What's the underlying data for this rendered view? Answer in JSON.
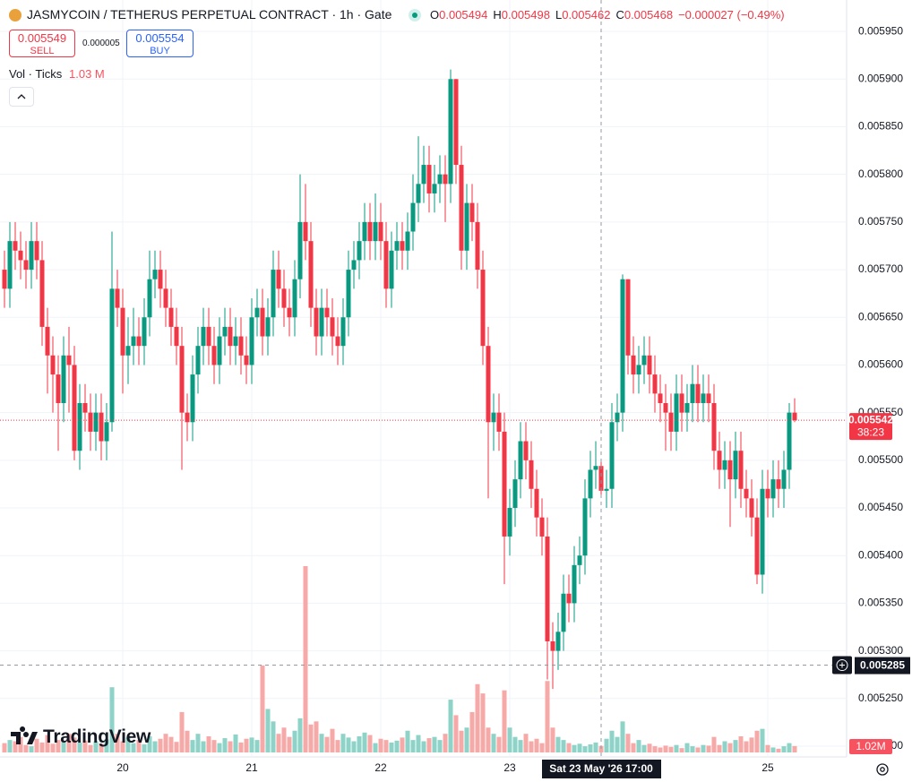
{
  "header": {
    "symbol": "JASMYCOIN / TETHERUS PERPETUAL CONTRACT · 1h · Gate",
    "ohlc": [
      {
        "label": "O",
        "value": "0.005494"
      },
      {
        "label": "H",
        "value": "0.005498"
      },
      {
        "label": "L",
        "value": "0.005462"
      },
      {
        "label": "C",
        "value": "0.005468"
      }
    ],
    "change": "−0.000027 (−0.49%)"
  },
  "trade": {
    "sell_price": "0.005549",
    "sell": "SELL",
    "spread": "0.000005",
    "buy_price": "0.005554",
    "buy": "BUY"
  },
  "volume_legend": {
    "label": "Vol · Ticks",
    "value": "1.03 M"
  },
  "logo": "TradingView",
  "chart_data": {
    "type": "candlestick",
    "categories": [
      null,
      null,
      null,
      null,
      null,
      null,
      null,
      null,
      null,
      null,
      null,
      null,
      null,
      null,
      null,
      null,
      null,
      null,
      null,
      null,
      null,
      null,
      "20",
      null,
      null,
      null,
      null,
      null,
      null,
      null,
      null,
      null,
      null,
      null,
      null,
      null,
      null,
      null,
      null,
      null,
      null,
      null,
      null,
      null,
      null,
      null,
      "21",
      null,
      null,
      null,
      null,
      null,
      null,
      null,
      null,
      null,
      null,
      null,
      null,
      null,
      null,
      null,
      null,
      null,
      null,
      null,
      null,
      null,
      null,
      null,
      "22",
      null,
      null,
      null,
      null,
      null,
      null,
      null,
      null,
      null,
      null,
      null,
      null,
      null,
      null,
      null,
      null,
      null,
      null,
      null,
      null,
      null,
      null,
      null,
      "23",
      null,
      null,
      null,
      null,
      null,
      null,
      null,
      null,
      null,
      null,
      null,
      null,
      null,
      null,
      null,
      null,
      null,
      null,
      null,
      null,
      null,
      null,
      null,
      null,
      null,
      null,
      null,
      null,
      null,
      null,
      null,
      null,
      null,
      null,
      null,
      null,
      null,
      null,
      null,
      null,
      null,
      null,
      null,
      null,
      null,
      null,
      null,
      "25",
      null,
      null,
      null,
      null,
      null
    ],
    "open": [
      0.0057,
      0.00568,
      0.00573,
      0.00572,
      0.00571,
      0.0057,
      0.00573,
      0.00571,
      0.00564,
      0.00561,
      0.00559,
      0.00556,
      0.00561,
      0.0056,
      0.00551,
      0.00556,
      0.00555,
      0.00553,
      0.00555,
      0.00552,
      0.00554,
      0.00568,
      0.00566,
      0.00561,
      0.00562,
      0.00563,
      0.00562,
      0.00565,
      0.00569,
      0.0057,
      0.00568,
      0.00566,
      0.00564,
      0.00562,
      0.00555,
      0.00554,
      0.00559,
      0.00562,
      0.00564,
      0.00562,
      0.0056,
      0.00563,
      0.00564,
      0.00562,
      0.00563,
      0.00561,
      0.0056,
      0.00565,
      0.00566,
      0.00563,
      0.00565,
      0.0057,
      0.00568,
      0.00566,
      0.00565,
      0.00569,
      0.00575,
      0.00573,
      0.00566,
      0.00563,
      0.00566,
      0.00565,
      0.00563,
      0.00562,
      0.00565,
      0.0057,
      0.00571,
      0.00573,
      0.00575,
      0.00573,
      0.00575,
      0.00573,
      0.00568,
      0.00572,
      0.00573,
      0.00572,
      0.00574,
      0.00577,
      0.00579,
      0.00581,
      0.00578,
      0.00579,
      0.0058,
      0.00579,
      0.0059,
      0.00581,
      0.00572,
      0.00577,
      0.00575,
      0.0057,
      0.00562,
      0.00554,
      0.00555,
      0.00553,
      0.00542,
      0.00545,
      0.00548,
      0.00552,
      0.0055,
      0.00547,
      0.00544,
      0.00542,
      0.00531,
      0.0053,
      0.00532,
      0.00536,
      0.00535,
      0.00539,
      0.0054,
      0.00546,
      0.00549,
      0.005494,
      0.005468,
      0.00547,
      0.00554,
      0.00555,
      0.00569,
      0.00561,
      0.00559,
      0.0056,
      0.00561,
      0.00559,
      0.00557,
      0.00556,
      0.00555,
      0.00553,
      0.00557,
      0.00555,
      0.00556,
      0.00558,
      0.00556,
      0.00557,
      0.00556,
      0.00551,
      0.00549,
      0.0055,
      0.00548,
      0.00551,
      0.00547,
      0.00546,
      0.00544,
      0.00538,
      0.00547,
      0.00546,
      0.00548,
      0.00547,
      0.00549,
      0.00555
    ],
    "high": [
      0.00572,
      0.00575,
      0.00575,
      0.00574,
      0.00573,
      0.00575,
      0.00575,
      0.00573,
      0.00566,
      0.00563,
      0.00561,
      0.00563,
      0.00564,
      0.00562,
      0.00558,
      0.00558,
      0.00557,
      0.00557,
      0.00557,
      0.00556,
      0.00574,
      0.0057,
      0.00568,
      0.00565,
      0.00566,
      0.00565,
      0.00567,
      0.00572,
      0.00572,
      0.00572,
      0.0057,
      0.00568,
      0.00566,
      0.00564,
      0.00557,
      0.00561,
      0.00564,
      0.00566,
      0.00566,
      0.00564,
      0.00565,
      0.00566,
      0.00566,
      0.00565,
      0.00565,
      0.00563,
      0.00567,
      0.00568,
      0.00568,
      0.00567,
      0.00572,
      0.00572,
      0.0057,
      0.00568,
      0.00571,
      0.0058,
      0.00579,
      0.00575,
      0.00568,
      0.00568,
      0.00568,
      0.00567,
      0.00565,
      0.00567,
      0.00572,
      0.00573,
      0.00575,
      0.00577,
      0.00577,
      0.00578,
      0.00577,
      0.00575,
      0.00574,
      0.00575,
      0.00575,
      0.00576,
      0.0058,
      0.00584,
      0.00583,
      0.00583,
      0.00581,
      0.00582,
      0.00582,
      0.00591,
      0.0059,
      0.00583,
      0.00579,
      0.00579,
      0.00577,
      0.00572,
      0.00564,
      0.00557,
      0.00557,
      0.00555,
      0.00547,
      0.0055,
      0.00554,
      0.00554,
      0.00552,
      0.00549,
      0.00546,
      0.00544,
      0.00533,
      0.00534,
      0.00538,
      0.00538,
      0.00541,
      0.00542,
      0.00548,
      0.00551,
      0.00552,
      0.005498,
      0.00549,
      0.00556,
      0.00557,
      0.005695,
      0.00569,
      0.00563,
      0.00562,
      0.00563,
      0.00563,
      0.00561,
      0.00559,
      0.00558,
      0.00557,
      0.00559,
      0.00559,
      0.00558,
      0.0056,
      0.0056,
      0.00559,
      0.00559,
      0.00558,
      0.00553,
      0.00552,
      0.00552,
      0.00553,
      0.00553,
      0.00549,
      0.00548,
      0.00546,
      0.00549,
      0.00549,
      0.0055,
      0.0055,
      0.00551,
      0.00556,
      0.005565
    ],
    "low": [
      0.00566,
      0.00566,
      0.0057,
      0.00569,
      0.00568,
      0.00568,
      0.00569,
      0.00562,
      0.00557,
      0.00555,
      0.00551,
      0.00554,
      0.00555,
      0.0055,
      0.00549,
      0.00553,
      0.00551,
      0.00551,
      0.0055,
      0.0055,
      0.00553,
      0.00564,
      0.00557,
      0.00558,
      0.0056,
      0.0056,
      0.0056,
      0.00563,
      0.00567,
      0.00566,
      0.00564,
      0.00562,
      0.0056,
      0.00549,
      0.00552,
      0.00552,
      0.00557,
      0.0056,
      0.0056,
      0.00558,
      0.00558,
      0.00561,
      0.0056,
      0.0056,
      0.00559,
      0.00558,
      0.00558,
      0.00563,
      0.00561,
      0.00561,
      0.00563,
      0.00566,
      0.00564,
      0.00563,
      0.00563,
      0.00567,
      0.00571,
      0.00564,
      0.00561,
      0.00561,
      0.00563,
      0.00561,
      0.0056,
      0.0056,
      0.00563,
      0.00568,
      0.00569,
      0.00571,
      0.00571,
      0.00571,
      0.00571,
      0.00566,
      0.00566,
      0.0057,
      0.0057,
      0.0057,
      0.00572,
      0.00575,
      0.00577,
      0.00576,
      0.00576,
      0.00577,
      0.00575,
      0.00577,
      0.00579,
      0.0057,
      0.0057,
      0.00573,
      0.00568,
      0.0056,
      0.00546,
      0.00551,
      0.00551,
      0.00537,
      0.0054,
      0.00543,
      0.00546,
      0.00548,
      0.00545,
      0.00542,
      0.0054,
      0.00527,
      0.00526,
      0.00528,
      0.0053,
      0.00533,
      0.00533,
      0.00537,
      0.00538,
      0.00544,
      0.00547,
      0.005462,
      0.00545,
      0.00545,
      0.00552,
      0.00553,
      0.00559,
      0.00557,
      0.00557,
      0.00558,
      0.00557,
      0.00555,
      0.00554,
      0.00551,
      0.00551,
      0.00551,
      0.00553,
      0.00553,
      0.00554,
      0.00554,
      0.00554,
      0.00554,
      0.00549,
      0.00547,
      0.00547,
      0.00543,
      0.00546,
      0.00545,
      0.00544,
      0.00542,
      0.00537,
      0.00536,
      0.00544,
      0.00544,
      0.00545,
      0.00545,
      0.00547,
      0.00554
    ],
    "close": [
      0.00568,
      0.00573,
      0.00572,
      0.00571,
      0.0057,
      0.00573,
      0.00571,
      0.00564,
      0.00561,
      0.00559,
      0.00556,
      0.00561,
      0.0056,
      0.00551,
      0.00556,
      0.00555,
      0.00553,
      0.00555,
      0.00552,
      0.00554,
      0.00568,
      0.00566,
      0.00561,
      0.00562,
      0.00563,
      0.00562,
      0.00565,
      0.00569,
      0.0057,
      0.00568,
      0.00566,
      0.00564,
      0.00562,
      0.00555,
      0.00554,
      0.00559,
      0.00562,
      0.00564,
      0.00562,
      0.0056,
      0.00563,
      0.00564,
      0.00562,
      0.00563,
      0.00561,
      0.0056,
      0.00565,
      0.00566,
      0.00563,
      0.00565,
      0.0057,
      0.00568,
      0.00566,
      0.00565,
      0.00569,
      0.00575,
      0.00573,
      0.00566,
      0.00563,
      0.00566,
      0.00565,
      0.00563,
      0.00562,
      0.00565,
      0.0057,
      0.00571,
      0.00573,
      0.00575,
      0.00573,
      0.00575,
      0.00573,
      0.00568,
      0.00572,
      0.00573,
      0.00572,
      0.00574,
      0.00577,
      0.00579,
      0.00581,
      0.00578,
      0.00579,
      0.0058,
      0.00579,
      0.0059,
      0.00581,
      0.00572,
      0.00577,
      0.00575,
      0.0057,
      0.00562,
      0.00554,
      0.00555,
      0.00553,
      0.00542,
      0.00545,
      0.00548,
      0.00552,
      0.0055,
      0.00547,
      0.00544,
      0.00542,
      0.00531,
      0.0053,
      0.00532,
      0.00536,
      0.00535,
      0.00539,
      0.0054,
      0.00546,
      0.00549,
      0.005494,
      0.005468,
      0.00547,
      0.00554,
      0.00555,
      0.00569,
      0.00561,
      0.00559,
      0.0056,
      0.00561,
      0.00559,
      0.00557,
      0.00556,
      0.00555,
      0.00553,
      0.00557,
      0.00555,
      0.00556,
      0.00558,
      0.00556,
      0.00557,
      0.00556,
      0.00551,
      0.00549,
      0.0055,
      0.00548,
      0.00551,
      0.00547,
      0.00546,
      0.00544,
      0.00538,
      0.00547,
      0.00546,
      0.00548,
      0.00547,
      0.00549,
      0.00555,
      0.005542
    ],
    "volume": [
      1.5,
      2,
      1.8,
      2.5,
      1.2,
      1,
      2.2,
      1.6,
      2.8,
      1.4,
      2,
      1.7,
      3,
      2.4,
      1.6,
      1.9,
      1.2,
      1.8,
      1.4,
      2.1,
      10.5,
      3,
      1.8,
      2.4,
      1.5,
      2,
      1.3,
      2.6,
      1.8,
      2.2,
      3,
      2.5,
      1.7,
      6.5,
      3.5,
      2,
      3,
      1.8,
      2.6,
      2,
      1.5,
      2.3,
      1.8,
      2.9,
      1.6,
      2.2,
      2.4,
      2,
      14,
      7,
      5,
      3,
      4,
      2.5,
      3.5,
      5.5,
      30,
      4.5,
      5,
      3,
      2.5,
      3.8,
      2,
      3,
      2.4,
      1.8,
      2.6,
      3.2,
      2.8,
      1.5,
      2.2,
      2,
      1.6,
      1.9,
      2.4,
      3.5,
      2,
      2.8,
      1.8,
      2.3,
      2.5,
      2,
      3,
      8.5,
      6,
      3.5,
      4,
      6.5,
      11,
      9.5,
      4,
      3,
      2.5,
      10,
      4,
      2.5,
      2,
      3,
      1.8,
      2.2,
      1.5,
      11.5,
      4,
      2.5,
      2,
      1.5,
      1.2,
      1.4,
      1,
      1.3,
      1.6,
      1.03,
      2.2,
      3.5,
      2.5,
      5,
      3,
      1.5,
      2,
      1.2,
      1.4,
      1,
      0.8,
      1.1,
      0.9,
      1.2,
      0.7,
      1.5,
      1,
      0.8,
      1.2,
      1.1,
      2.5,
      1.2,
      1.8,
      1.5,
      2,
      2.6,
      1.8,
      2.4,
      3.5,
      3.8,
      1.2,
      0.8,
      0.6,
      1,
      1.5,
      1.02
    ],
    "ylim": [
      0.005184,
      0.005983
    ],
    "yticks": [
      {
        "value": 0.0052,
        "label": "0.005200"
      },
      {
        "value": 0.00525,
        "label": "0.005250"
      },
      {
        "value": 0.0053,
        "label": "0.005300"
      },
      {
        "value": 0.00535,
        "label": "0.005350"
      },
      {
        "value": 0.0054,
        "label": "0.005400"
      },
      {
        "value": 0.00545,
        "label": "0.005450"
      },
      {
        "value": 0.0055,
        "label": "0.005500"
      },
      {
        "value": 0.00555,
        "label": "0.005550"
      },
      {
        "value": 0.0056,
        "label": "0.005600"
      },
      {
        "value": 0.00565,
        "label": "0.005650"
      },
      {
        "value": 0.0057,
        "label": "0.005700"
      },
      {
        "value": 0.00575,
        "label": "0.005750"
      },
      {
        "value": 0.0058,
        "label": "0.005800"
      },
      {
        "value": 0.00585,
        "label": "0.005850"
      },
      {
        "value": 0.0059,
        "label": "0.005900"
      },
      {
        "value": 0.00595,
        "label": "0.005950"
      }
    ],
    "vol_ylim": [
      0,
      60
    ],
    "grid": true,
    "colors": {
      "up": "#089981",
      "down": "#f23645",
      "up_volume": "#8ed3c8",
      "down_volume": "#f7a9a7"
    },
    "last_price": {
      "value": 0.005542,
      "label": "0.005542"
    },
    "countdown": "38:23",
    "volume_label": "1.02M",
    "crosshair": {
      "price": {
        "value": 0.005285,
        "label": "0.005285"
      },
      "time": "Sat 23 May '26 17:00"
    }
  }
}
